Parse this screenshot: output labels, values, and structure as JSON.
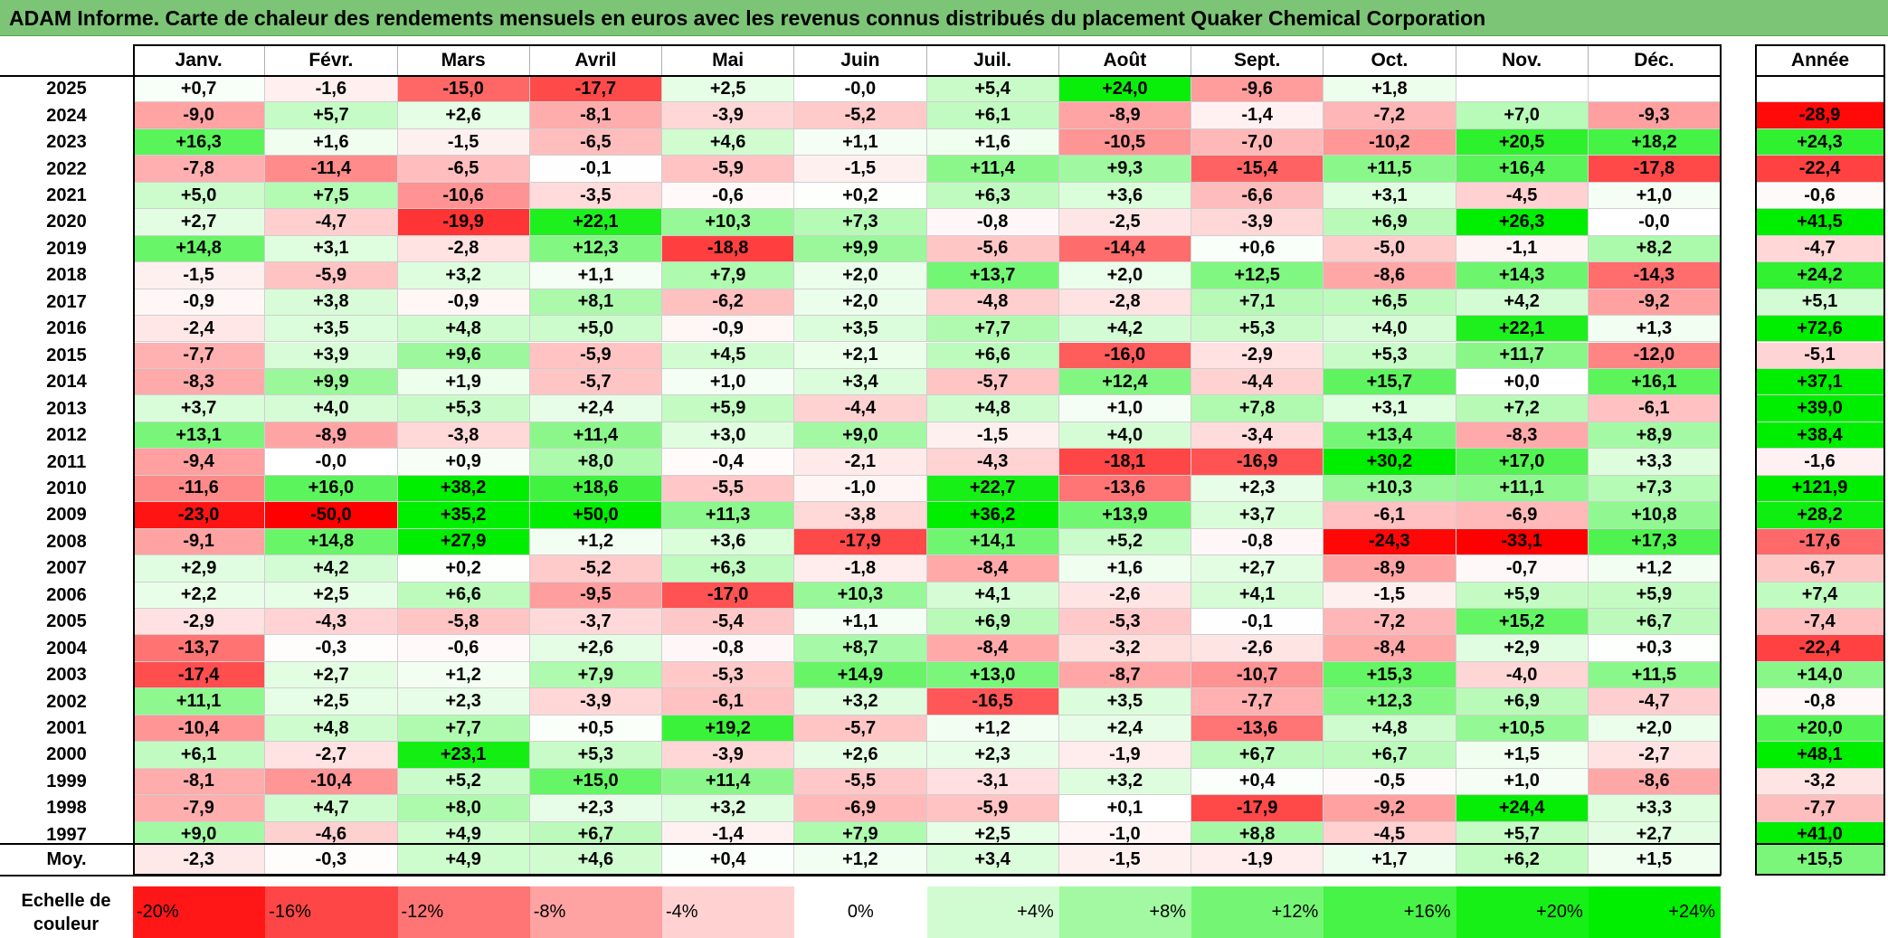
{
  "title": "ADAM Informe. Carte de chaleur des rendements mensuels en euros avec les revenus connus distribués du placement Quaker Chemical Corporation",
  "chart_data": {
    "type": "heatmap",
    "title": "ADAM Informe. Carte de chaleur des rendements mensuels en euros avec les revenus connus distribués du placement Quaker Chemical Corporation",
    "columns": [
      "Janv.",
      "Févr.",
      "Mars",
      "Avril",
      "Mai",
      "Juin",
      "Juil.",
      "Août",
      "Sept.",
      "Oct.",
      "Nov.",
      "Déc."
    ],
    "annual_label": "Année",
    "avg_label": "Moy.",
    "rows": [
      {
        "year": "2025",
        "values": [
          "+0,7",
          "-1,6",
          "-15,0",
          "-17,7",
          "+2,5",
          "-0,0",
          "+5,4",
          "+24,0",
          "-9,6",
          "+1,8",
          "",
          ""
        ],
        "annual": ""
      },
      {
        "year": "2024",
        "values": [
          "-9,0",
          "+5,7",
          "+2,6",
          "-8,1",
          "-3,9",
          "-5,2",
          "+6,1",
          "-8,9",
          "-1,4",
          "-7,2",
          "+7,0",
          "-9,3"
        ],
        "annual": "-28,9"
      },
      {
        "year": "2023",
        "values": [
          "+16,3",
          "+1,6",
          "-1,5",
          "-6,5",
          "+4,6",
          "+1,1",
          "+1,6",
          "-10,5",
          "-7,0",
          "-10,2",
          "+20,5",
          "+18,2"
        ],
        "annual": "+24,3"
      },
      {
        "year": "2022",
        "values": [
          "-7,8",
          "-11,4",
          "-6,5",
          "-0,1",
          "-5,9",
          "-1,5",
          "+11,4",
          "+9,3",
          "-15,4",
          "+11,5",
          "+16,4",
          "-17,8"
        ],
        "annual": "-22,4"
      },
      {
        "year": "2021",
        "values": [
          "+5,0",
          "+7,5",
          "-10,6",
          "-3,5",
          "-0,6",
          "+0,2",
          "+6,3",
          "+3,6",
          "-6,6",
          "+3,1",
          "-4,5",
          "+1,0"
        ],
        "annual": "-0,6"
      },
      {
        "year": "2020",
        "values": [
          "+2,7",
          "-4,7",
          "-19,9",
          "+22,1",
          "+10,3",
          "+7,3",
          "-0,8",
          "-2,5",
          "-3,9",
          "+6,9",
          "+26,3",
          "-0,0"
        ],
        "annual": "+41,5"
      },
      {
        "year": "2019",
        "values": [
          "+14,8",
          "+3,1",
          "-2,8",
          "+12,3",
          "-18,8",
          "+9,9",
          "-5,6",
          "-14,4",
          "+0,6",
          "-5,0",
          "-1,1",
          "+8,2"
        ],
        "annual": "-4,7"
      },
      {
        "year": "2018",
        "values": [
          "-1,5",
          "-5,9",
          "+3,2",
          "+1,1",
          "+7,9",
          "+2,0",
          "+13,7",
          "+2,0",
          "+12,5",
          "-8,6",
          "+14,3",
          "-14,3"
        ],
        "annual": "+24,2"
      },
      {
        "year": "2017",
        "values": [
          "-0,9",
          "+3,8",
          "-0,9",
          "+8,1",
          "-6,2",
          "+2,0",
          "-4,8",
          "-2,8",
          "+7,1",
          "+6,5",
          "+4,2",
          "-9,2"
        ],
        "annual": "+5,1"
      },
      {
        "year": "2016",
        "values": [
          "-2,4",
          "+3,5",
          "+4,8",
          "+5,0",
          "-0,9",
          "+3,5",
          "+7,7",
          "+4,2",
          "+5,3",
          "+4,0",
          "+22,1",
          "+1,3"
        ],
        "annual": "+72,6"
      },
      {
        "year": "2015",
        "values": [
          "-7,7",
          "+3,9",
          "+9,6",
          "-5,9",
          "+4,5",
          "+2,1",
          "+6,6",
          "-16,0",
          "-2,9",
          "+5,3",
          "+11,7",
          "-12,0"
        ],
        "annual": "-5,1"
      },
      {
        "year": "2014",
        "values": [
          "-8,3",
          "+9,9",
          "+1,9",
          "-5,7",
          "+1,0",
          "+3,4",
          "-5,7",
          "+12,4",
          "-4,4",
          "+15,7",
          "+0,0",
          "+16,1"
        ],
        "annual": "+37,1"
      },
      {
        "year": "2013",
        "values": [
          "+3,7",
          "+4,0",
          "+5,3",
          "+2,4",
          "+5,9",
          "-4,4",
          "+4,8",
          "+1,0",
          "+7,8",
          "+3,1",
          "+7,2",
          "-6,1"
        ],
        "annual": "+39,0"
      },
      {
        "year": "2012",
        "values": [
          "+13,1",
          "-8,9",
          "-3,8",
          "+11,4",
          "+3,0",
          "+9,0",
          "-1,5",
          "+4,0",
          "-3,4",
          "+13,4",
          "-8,3",
          "+8,9"
        ],
        "annual": "+38,4"
      },
      {
        "year": "2011",
        "values": [
          "-9,4",
          "-0,0",
          "+0,9",
          "+8,0",
          "-0,4",
          "-2,1",
          "-4,3",
          "-18,1",
          "-16,9",
          "+30,2",
          "+17,0",
          "+3,3"
        ],
        "annual": "-1,6"
      },
      {
        "year": "2010",
        "values": [
          "-11,6",
          "+16,0",
          "+38,2",
          "+18,6",
          "-5,5",
          "-1,0",
          "+22,7",
          "-13,6",
          "+2,3",
          "+10,3",
          "+11,1",
          "+7,3"
        ],
        "annual": "+121,9"
      },
      {
        "year": "2009",
        "values": [
          "-23,0",
          "-50,0",
          "+35,2",
          "+50,0",
          "+11,3",
          "-3,8",
          "+36,2",
          "+13,9",
          "+3,7",
          "-6,1",
          "-6,9",
          "+10,8"
        ],
        "annual": "+28,2"
      },
      {
        "year": "2008",
        "values": [
          "-9,1",
          "+14,8",
          "+27,9",
          "+1,2",
          "+3,6",
          "-17,9",
          "+14,1",
          "+5,2",
          "-0,8",
          "-24,3",
          "-33,1",
          "+17,3"
        ],
        "annual": "-17,6"
      },
      {
        "year": "2007",
        "values": [
          "+2,9",
          "+4,2",
          "+0,2",
          "-5,2",
          "+6,3",
          "-1,8",
          "-8,4",
          "+1,6",
          "+2,7",
          "-8,9",
          "-0,7",
          "+1,2"
        ],
        "annual": "-6,7"
      },
      {
        "year": "2006",
        "values": [
          "+2,2",
          "+2,5",
          "+6,6",
          "-9,5",
          "-17,0",
          "+10,3",
          "+4,1",
          "-2,6",
          "+4,1",
          "-1,5",
          "+5,9",
          "+5,9"
        ],
        "annual": "+7,4"
      },
      {
        "year": "2005",
        "values": [
          "-2,9",
          "-4,3",
          "-5,8",
          "-3,7",
          "-5,4",
          "+1,1",
          "+6,9",
          "-5,3",
          "-0,1",
          "-7,2",
          "+15,2",
          "+6,7"
        ],
        "annual": "-7,4"
      },
      {
        "year": "2004",
        "values": [
          "-13,7",
          "-0,3",
          "-0,6",
          "+2,6",
          "-0,8",
          "+8,7",
          "-8,4",
          "-3,2",
          "-2,6",
          "-8,4",
          "+2,9",
          "+0,3"
        ],
        "annual": "-22,4"
      },
      {
        "year": "2003",
        "values": [
          "-17,4",
          "+2,7",
          "+1,2",
          "+7,9",
          "-5,3",
          "+14,9",
          "+13,0",
          "-8,7",
          "-10,7",
          "+15,3",
          "-4,0",
          "+11,5"
        ],
        "annual": "+14,0"
      },
      {
        "year": "2002",
        "values": [
          "+11,1",
          "+2,5",
          "+2,3",
          "-3,9",
          "-6,1",
          "+3,2",
          "-16,5",
          "+3,5",
          "-7,7",
          "+12,3",
          "+6,9",
          "-4,7"
        ],
        "annual": "-0,8"
      },
      {
        "year": "2001",
        "values": [
          "-10,4",
          "+4,8",
          "+7,7",
          "+0,5",
          "+19,2",
          "-5,7",
          "+1,2",
          "+2,4",
          "-13,6",
          "+4,8",
          "+10,5",
          "+2,0"
        ],
        "annual": "+20,0"
      },
      {
        "year": "2000",
        "values": [
          "+6,1",
          "-2,7",
          "+23,1",
          "+5,3",
          "-3,9",
          "+2,6",
          "+2,3",
          "-1,9",
          "+6,7",
          "+6,7",
          "+1,5",
          "-2,7"
        ],
        "annual": "+48,1"
      },
      {
        "year": "1999",
        "values": [
          "-8,1",
          "-10,4",
          "+5,2",
          "+15,0",
          "+11,4",
          "-5,5",
          "-3,1",
          "+3,2",
          "+0,4",
          "-0,5",
          "+1,0",
          "-8,6"
        ],
        "annual": "-3,2"
      },
      {
        "year": "1998",
        "values": [
          "-7,9",
          "+4,7",
          "+8,0",
          "+2,3",
          "+3,2",
          "-6,9",
          "-5,9",
          "+0,1",
          "-17,9",
          "-9,2",
          "+24,4",
          "+3,3"
        ],
        "annual": "-7,7"
      },
      {
        "year": "1997",
        "values": [
          "+9,0",
          "-4,6",
          "+4,9",
          "+6,7",
          "-1,4",
          "+7,9",
          "+2,5",
          "-1,0",
          "+8,8",
          "-4,5",
          "+5,7",
          "+2,7"
        ],
        "annual": "+41,0"
      }
    ],
    "average": {
      "values": [
        "-2,3",
        "-0,3",
        "+4,9",
        "+4,6",
        "+0,4",
        "+1,2",
        "+3,4",
        "-1,5",
        "-1,9",
        "+1,7",
        "+6,2",
        "+1,5"
      ],
      "annual": "+15,5"
    },
    "color_scale": {
      "label": "Echelle de couleur",
      "stops": [
        "-20%",
        "-16%",
        "-12%",
        "-8%",
        "-4%",
        "0%",
        "+4%",
        "+8%",
        "+12%",
        "+16%",
        "+20%",
        "+24%"
      ]
    },
    "colors": {
      "negative": "#ff0000",
      "neutral": "#ffffff",
      "positive": "#00ee00",
      "title_bar": "#7cc576"
    }
  }
}
